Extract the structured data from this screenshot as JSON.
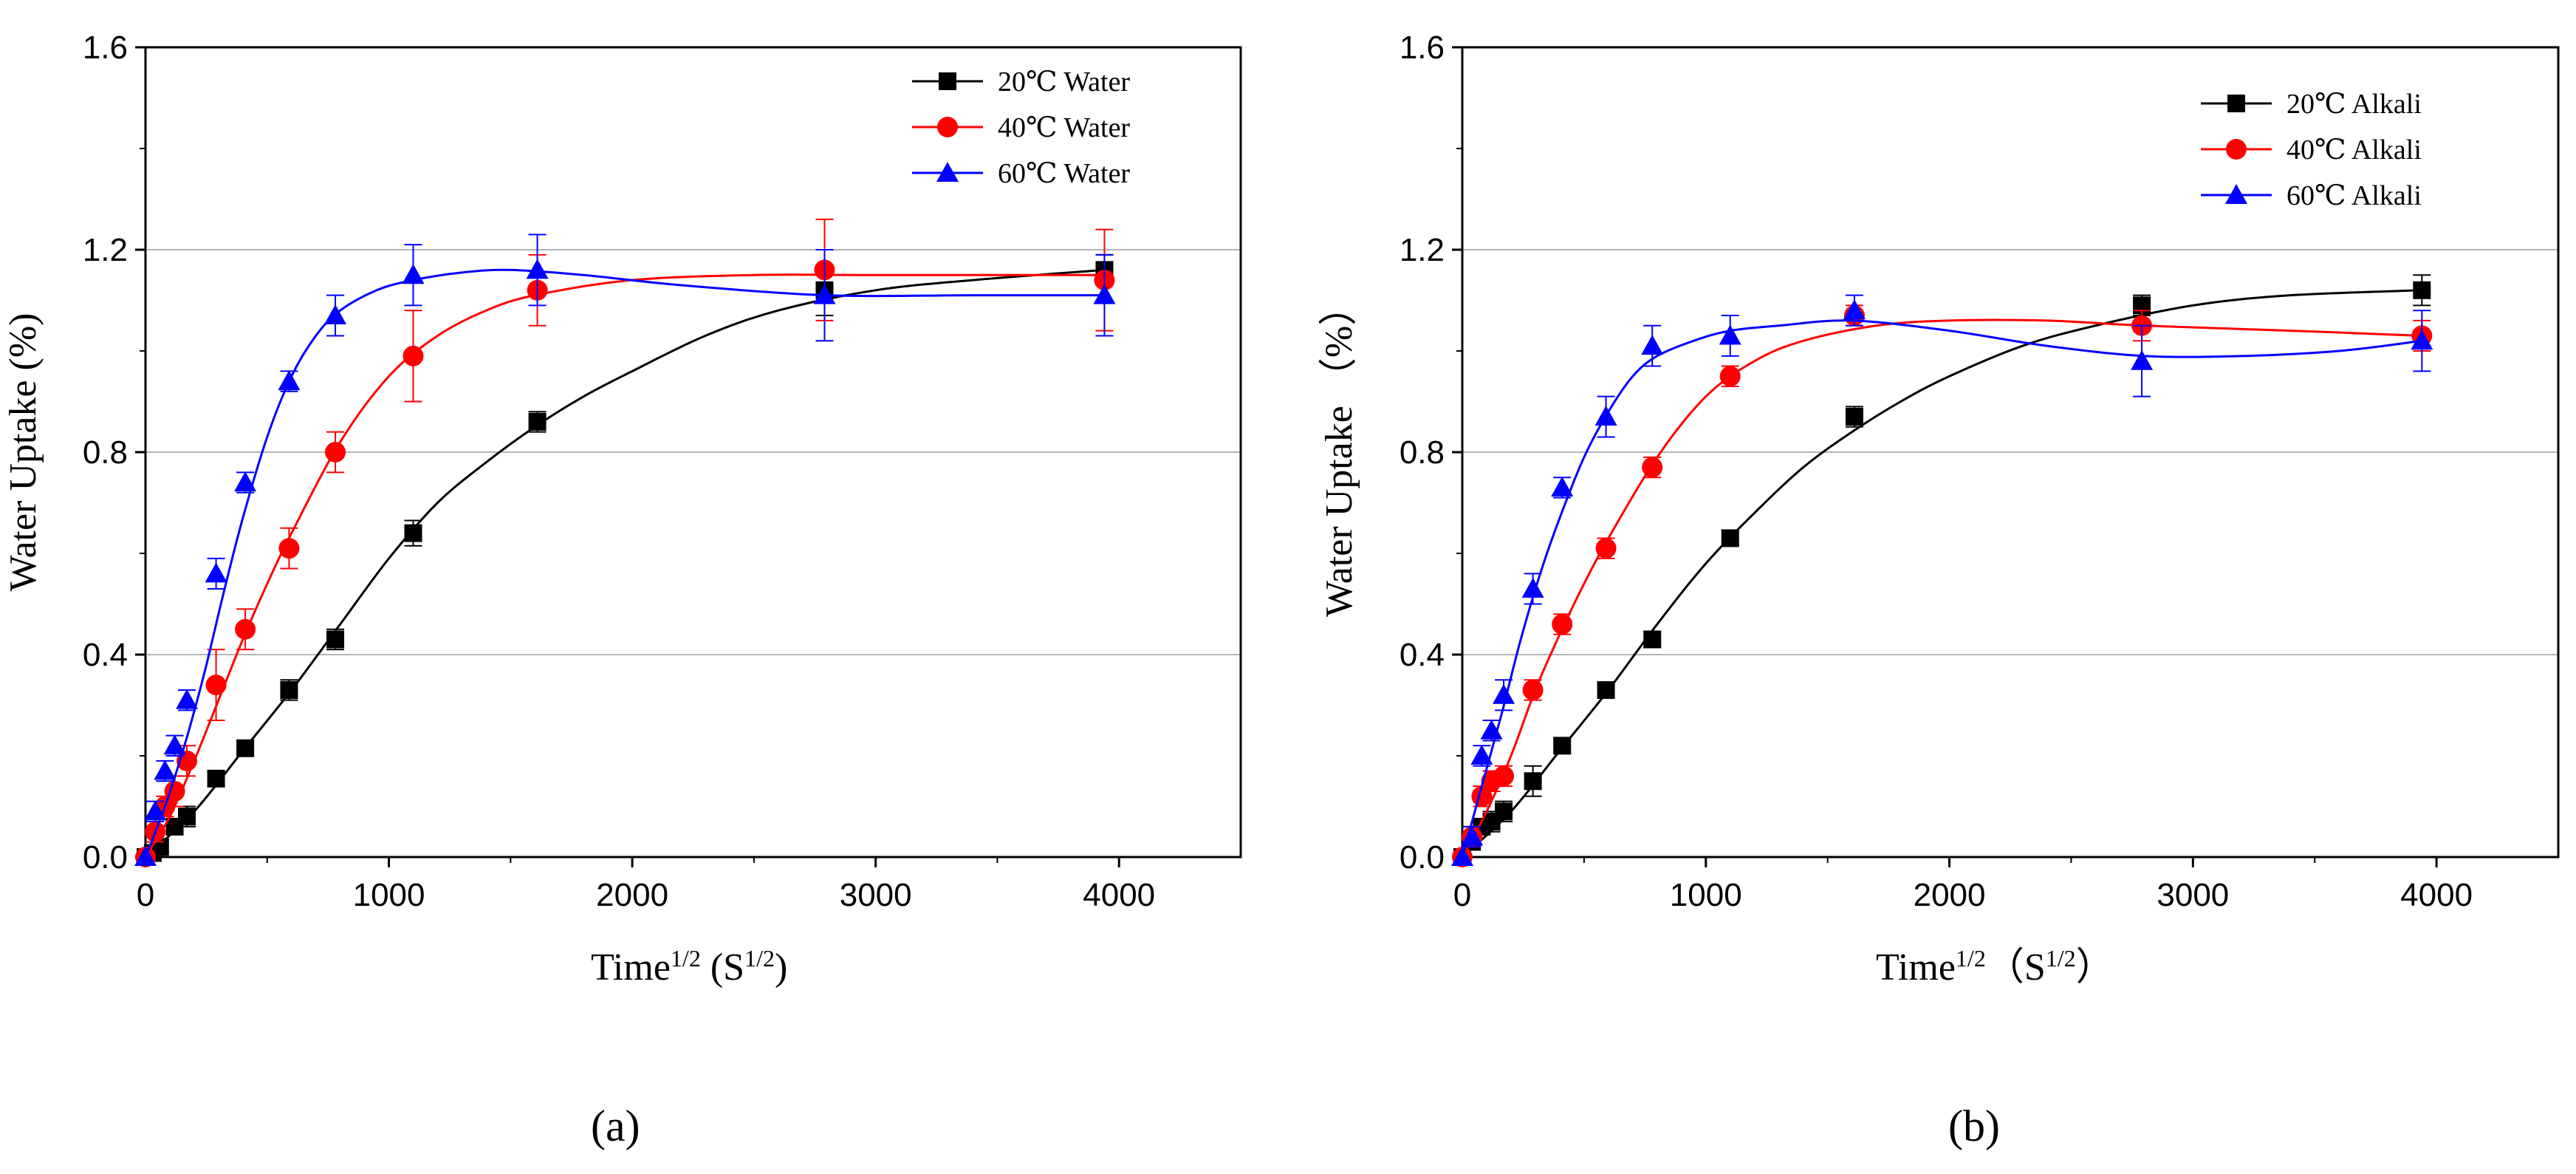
{
  "colors": {
    "s20": "#000000",
    "s40": "#ff0000",
    "s60": "#0000ff",
    "grid": "#b4b4b4"
  },
  "chart_data": [
    {
      "type": "line",
      "panel_label": "(a)",
      "xlim": [
        0,
        4500
      ],
      "ylim": [
        0,
        1.6
      ],
      "xticks": [
        "0",
        "1000",
        "2000",
        "3000",
        "4000"
      ],
      "yticks": [
        "0.0",
        "0.4",
        "0.8",
        "1.2",
        "1.6"
      ],
      "ylabel": "Water Uptake (%)",
      "xlabel_main": "Time",
      "xlabel_sup": "1/2",
      "xlabel_unit": " (S",
      "xlabel_unit_sup": "1/2",
      "xlabel_close": ")",
      "grid": "horizontal",
      "series": [
        {
          "name": "20℃ Water",
          "marker": "square",
          "color_key": "s20",
          "x": [
            0,
            30,
            60,
            120,
            170,
            290,
            410,
            590,
            780,
            1100,
            1610,
            2790,
            3940
          ],
          "y": [
            0.0,
            0.008,
            0.02,
            0.06,
            0.08,
            0.155,
            0.215,
            0.33,
            0.43,
            0.64,
            0.86,
            1.12,
            1.16
          ],
          "err": [
            0,
            0.01,
            0.01,
            0.015,
            0.02,
            0.015,
            0.015,
            0.02,
            0.02,
            0.025,
            0.02,
            0.05,
            0.03
          ],
          "fit_x": [
            0,
            200,
            400,
            600,
            800,
            1000,
            1200,
            1400,
            1600,
            1800,
            2000,
            2300,
            2600,
            3000,
            3400,
            3940
          ],
          "fit_y": [
            0,
            0.09,
            0.21,
            0.33,
            0.46,
            0.59,
            0.7,
            0.78,
            0.85,
            0.91,
            0.96,
            1.03,
            1.08,
            1.12,
            1.14,
            1.16
          ]
        },
        {
          "name": "40℃ Water",
          "marker": "circle",
          "color_key": "s40",
          "x": [
            0,
            40,
            80,
            120,
            170,
            290,
            410,
            590,
            780,
            1100,
            1610,
            2790,
            3940
          ],
          "y": [
            0.0,
            0.05,
            0.1,
            0.13,
            0.19,
            0.34,
            0.45,
            0.61,
            0.8,
            0.99,
            1.12,
            1.16,
            1.14
          ],
          "err": [
            0,
            0.02,
            0.02,
            0.03,
            0.03,
            0.07,
            0.04,
            0.04,
            0.04,
            0.09,
            0.07,
            0.1,
            0.1
          ],
          "fit_x": [
            0,
            100,
            200,
            300,
            400,
            500,
            600,
            800,
            1000,
            1200,
            1400,
            1600,
            2000,
            2500,
            3000,
            3940
          ],
          "fit_y": [
            0,
            0.08,
            0.19,
            0.31,
            0.43,
            0.54,
            0.64,
            0.82,
            0.95,
            1.03,
            1.08,
            1.11,
            1.14,
            1.15,
            1.15,
            1.15
          ]
        },
        {
          "name": "60℃ Water",
          "marker": "triangle",
          "color_key": "s60",
          "x": [
            0,
            40,
            80,
            120,
            170,
            290,
            410,
            590,
            780,
            1100,
            1610,
            2790,
            3940
          ],
          "y": [
            0.0,
            0.09,
            0.17,
            0.22,
            0.31,
            0.56,
            0.74,
            0.94,
            1.07,
            1.15,
            1.16,
            1.11,
            1.11
          ],
          "err": [
            0,
            0.02,
            0.02,
            0.02,
            0.02,
            0.03,
            0.02,
            0.02,
            0.04,
            0.06,
            0.07,
            0.09,
            0.08
          ],
          "fit_x": [
            0,
            80,
            160,
            240,
            320,
            400,
            500,
            600,
            700,
            800,
            950,
            1100,
            1300,
            1500,
            1800,
            2200,
            2800,
            3400,
            3940
          ],
          "fit_y": [
            0,
            0.1,
            0.22,
            0.36,
            0.52,
            0.67,
            0.83,
            0.95,
            1.03,
            1.08,
            1.12,
            1.14,
            1.155,
            1.16,
            1.15,
            1.13,
            1.11,
            1.11,
            1.11
          ]
        }
      ]
    },
    {
      "type": "line",
      "panel_label": "(b)",
      "xlim": [
        0,
        4500
      ],
      "ylim": [
        0,
        1.6
      ],
      "xticks": [
        "0",
        "1000",
        "2000",
        "3000",
        "4000"
      ],
      "yticks": [
        "0.0",
        "0.4",
        "0.8",
        "1.2",
        "1.6"
      ],
      "ylabel": "Water Uptake （%）",
      "xlabel_main": "Time",
      "xlabel_sup": "1/2",
      "xlabel_unit": "（S",
      "xlabel_unit_sup": "1/2",
      "xlabel_close": "）",
      "grid": "horizontal",
      "series": [
        {
          "name": "20℃  Alkali",
          "marker": "square",
          "color_key": "s20",
          "x": [
            0,
            40,
            80,
            120,
            170,
            290,
            410,
            590,
            780,
            1100,
            1610,
            2790,
            3940
          ],
          "y": [
            0.0,
            0.03,
            0.06,
            0.07,
            0.09,
            0.15,
            0.22,
            0.33,
            0.43,
            0.63,
            0.87,
            1.09,
            1.12
          ],
          "err": [
            0,
            0.01,
            0.01,
            0.02,
            0.02,
            0.03,
            0.015,
            0.015,
            0.015,
            0.015,
            0.02,
            0.02,
            0.03
          ],
          "fit_x": [
            0,
            200,
            400,
            600,
            800,
            1000,
            1200,
            1400,
            1600,
            1800,
            2000,
            2300,
            2600,
            3000,
            3400,
            3940
          ],
          "fit_y": [
            0,
            0.09,
            0.21,
            0.33,
            0.46,
            0.58,
            0.68,
            0.77,
            0.84,
            0.9,
            0.95,
            1.01,
            1.05,
            1.09,
            1.11,
            1.12
          ]
        },
        {
          "name": "40℃  Alkali",
          "marker": "circle",
          "color_key": "s40",
          "x": [
            0,
            40,
            80,
            120,
            170,
            290,
            410,
            590,
            780,
            1100,
            1610,
            2790,
            3940
          ],
          "y": [
            0.0,
            0.04,
            0.12,
            0.15,
            0.16,
            0.33,
            0.46,
            0.61,
            0.77,
            0.95,
            1.07,
            1.05,
            1.03
          ],
          "err": [
            0,
            0.02,
            0.02,
            0.02,
            0.02,
            0.02,
            0.02,
            0.02,
            0.02,
            0.02,
            0.02,
            0.03,
            0.03
          ],
          "fit_x": [
            0,
            100,
            200,
            300,
            400,
            500,
            600,
            800,
            1000,
            1200,
            1400,
            1700,
            2000,
            2400,
            2800,
            3400,
            3940
          ],
          "fit_y": [
            0,
            0.09,
            0.2,
            0.33,
            0.44,
            0.54,
            0.63,
            0.79,
            0.91,
            0.98,
            1.02,
            1.05,
            1.06,
            1.06,
            1.05,
            1.04,
            1.03
          ]
        },
        {
          "name": "60℃  Alkali",
          "marker": "triangle",
          "color_key": "s60",
          "x": [
            0,
            40,
            80,
            120,
            170,
            290,
            410,
            590,
            780,
            1100,
            1610,
            2790,
            3940
          ],
          "y": [
            0.0,
            0.04,
            0.2,
            0.25,
            0.32,
            0.53,
            0.73,
            0.87,
            1.01,
            1.03,
            1.08,
            0.98,
            1.02
          ],
          "err": [
            0,
            0.02,
            0.02,
            0.02,
            0.03,
            0.03,
            0.02,
            0.04,
            0.04,
            0.04,
            0.03,
            0.07,
            0.06
          ],
          "fit_x": [
            0,
            80,
            160,
            240,
            320,
            400,
            500,
            600,
            700,
            800,
            950,
            1100,
            1300,
            1600,
            2000,
            2400,
            2800,
            3200,
            3600,
            3940
          ],
          "fit_y": [
            0,
            0.14,
            0.28,
            0.43,
            0.56,
            0.67,
            0.79,
            0.88,
            0.95,
            0.99,
            1.02,
            1.04,
            1.05,
            1.06,
            1.04,
            1.01,
            0.99,
            0.99,
            1.0,
            1.02
          ]
        }
      ]
    }
  ]
}
